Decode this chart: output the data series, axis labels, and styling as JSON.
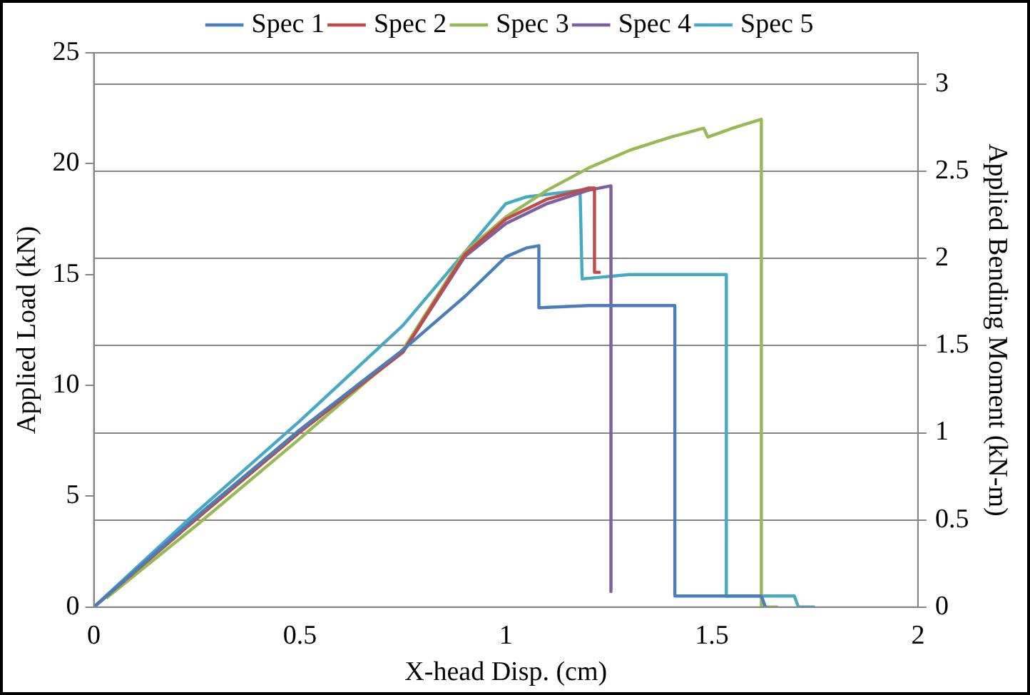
{
  "chart_data": {
    "type": "line",
    "xlabel": "X-head Disp. (cm)",
    "ylabel": "Applied Load (kN)",
    "y2label": "Applied Bending Moment (kN-m)",
    "xlim": [
      0,
      2
    ],
    "xticks": [
      0,
      0.5,
      1,
      1.5,
      2
    ],
    "ylim": [
      0,
      25
    ],
    "yticks": [
      0,
      5,
      10,
      15,
      20,
      25
    ],
    "y2lim": [
      0,
      3.18
    ],
    "y2ticks": [
      0,
      0.5,
      1,
      1.5,
      2,
      2.5,
      3
    ],
    "grid": "y",
    "legend": "top",
    "marker": "none",
    "line_style": "solid",
    "series": [
      {
        "name": "Spec 1",
        "color": "#4a7ebb",
        "x": [
          0,
          0.25,
          0.5,
          0.75,
          0.9,
          1.0,
          1.05,
          1.08,
          1.08,
          1.2,
          1.3,
          1.41,
          1.41,
          1.62,
          1.63
        ],
        "values": [
          0,
          4.1,
          8.0,
          11.6,
          14.0,
          15.8,
          16.2,
          16.3,
          13.5,
          13.6,
          13.6,
          13.6,
          0.5,
          0.5,
          0
        ]
      },
      {
        "name": "Spec 2",
        "color": "#be4b48",
        "x": [
          0,
          0.25,
          0.5,
          0.75,
          0.9,
          1.0,
          1.1,
          1.2,
          1.215,
          1.215,
          1.23
        ],
        "values": [
          0,
          4.0,
          7.9,
          11.5,
          15.9,
          17.5,
          18.4,
          18.9,
          18.9,
          15.1,
          15.1
        ]
      },
      {
        "name": "Spec 3",
        "color": "#98b954",
        "x": [
          0.03,
          0.25,
          0.5,
          0.75,
          0.9,
          1.0,
          1.1,
          1.2,
          1.3,
          1.4,
          1.48,
          1.49,
          1.55,
          1.62,
          1.62,
          1.66
        ],
        "values": [
          0.4,
          3.7,
          7.6,
          11.6,
          16.0,
          17.6,
          18.8,
          19.8,
          20.6,
          21.2,
          21.6,
          21.2,
          21.6,
          22.0,
          0,
          0
        ]
      },
      {
        "name": "Spec 4",
        "color": "#7d60a0",
        "x": [
          0,
          0.25,
          0.5,
          0.75,
          0.9,
          1.0,
          1.1,
          1.2,
          1.255,
          1.255
        ],
        "values": [
          0,
          4.0,
          7.9,
          11.5,
          15.8,
          17.3,
          18.2,
          18.8,
          19.0,
          0.7
        ]
      },
      {
        "name": "Spec 5",
        "color": "#46aac5",
        "x": [
          0,
          0.25,
          0.5,
          0.75,
          0.9,
          1.0,
          1.05,
          1.18,
          1.185,
          1.3,
          1.535,
          1.535,
          1.7,
          1.71,
          1.75
        ],
        "values": [
          0,
          4.3,
          8.4,
          12.7,
          16.0,
          18.2,
          18.5,
          18.8,
          14.8,
          15.0,
          15.0,
          0.5,
          0.5,
          0,
          0
        ]
      }
    ]
  }
}
